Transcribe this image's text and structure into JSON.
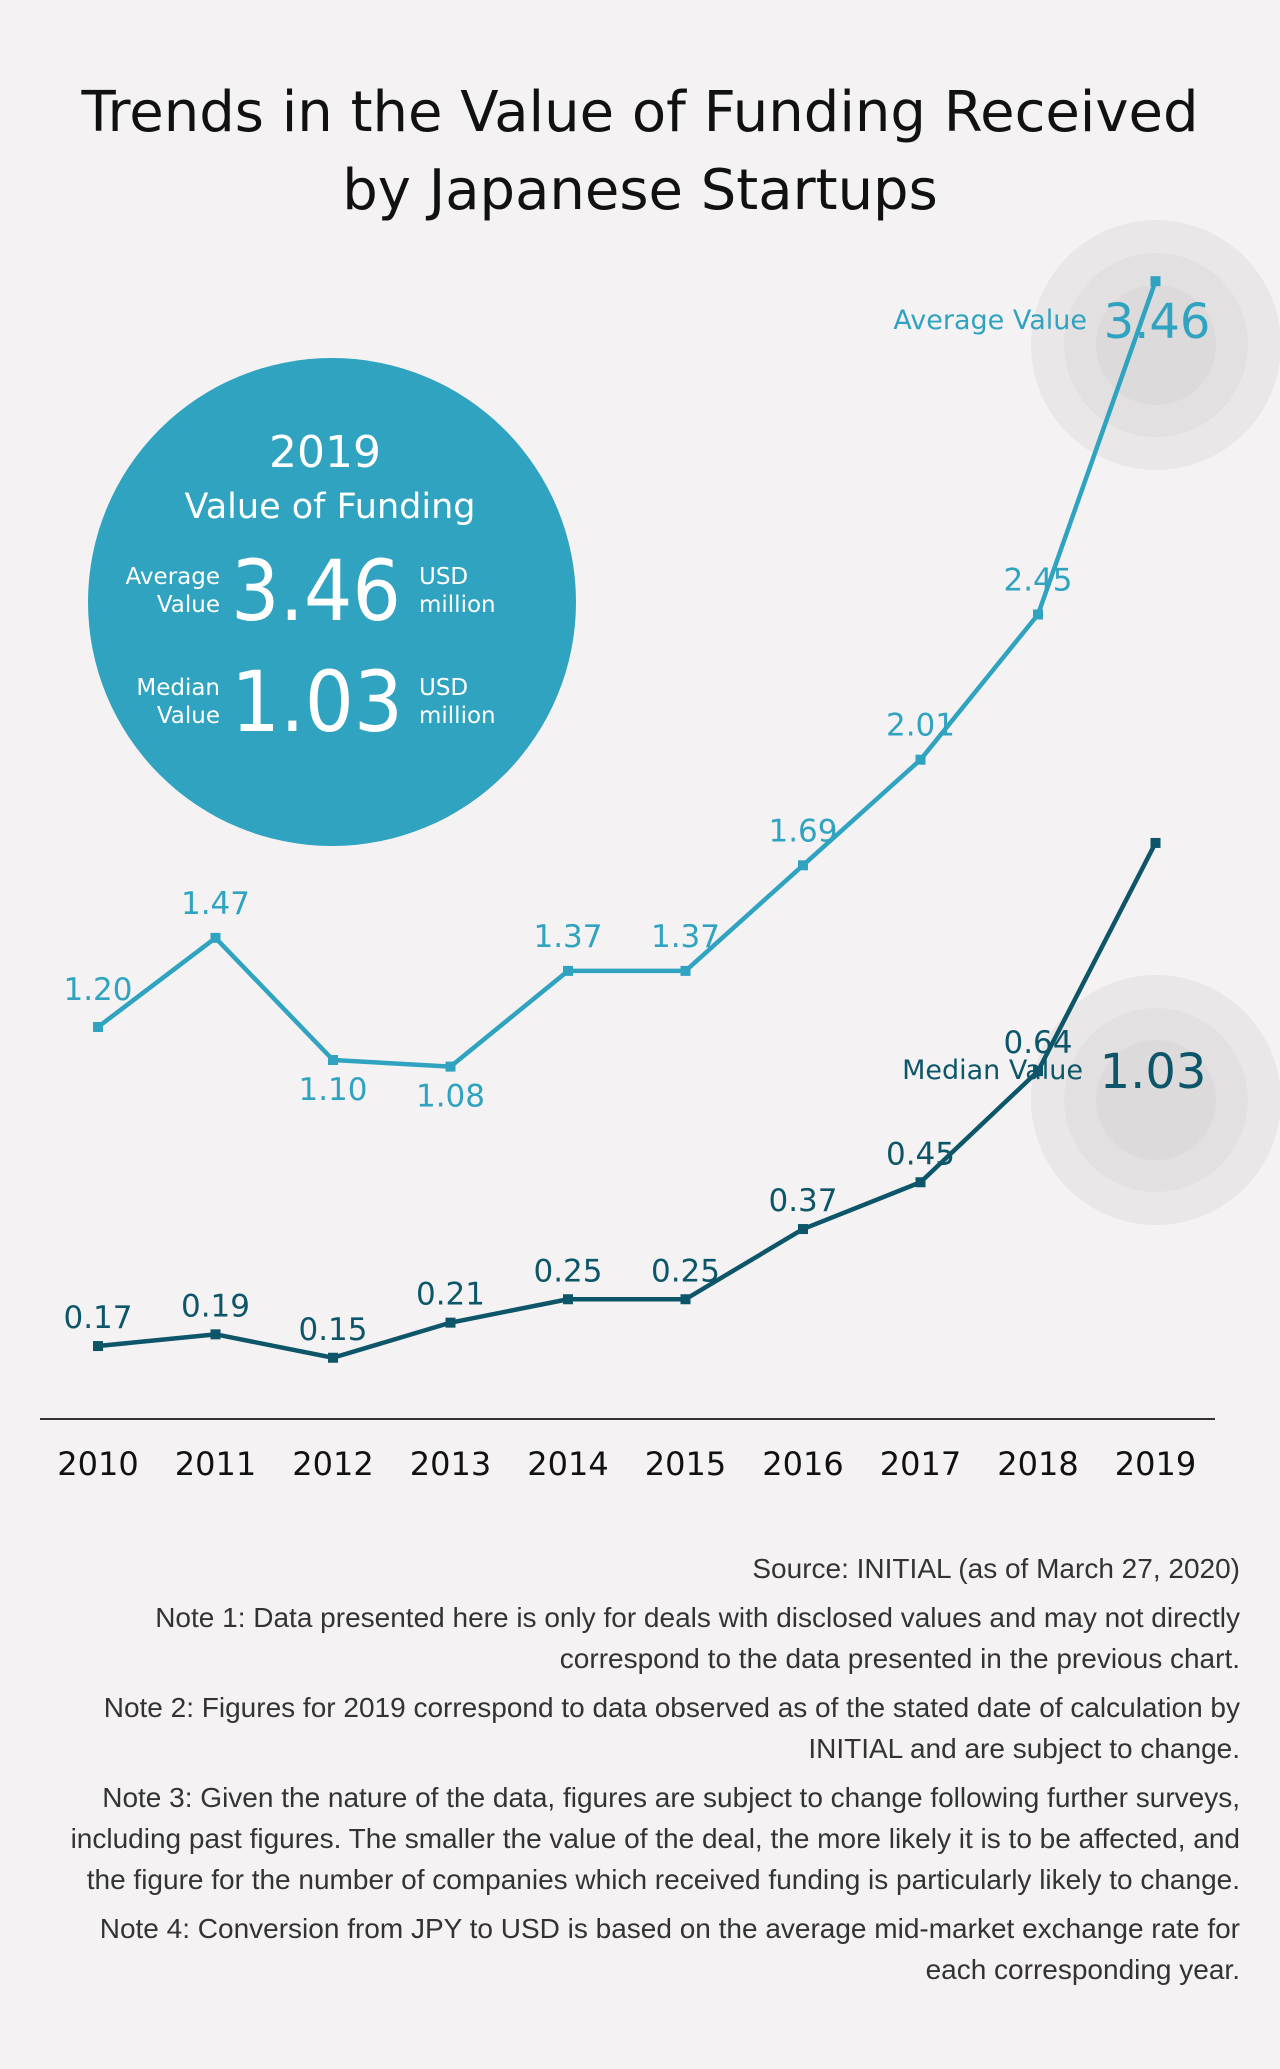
{
  "title_line1": "Trends in the Value of Funding Received",
  "title_line2": "by Japanese Startups",
  "summary": {
    "year": "2019",
    "heading": "Value of Funding",
    "average_label_1": "Average",
    "average_label_2": "Value",
    "average_value": "3.46",
    "median_label_1": "Median",
    "median_label_2": "Value",
    "median_value": "1.03",
    "unit_1": "USD",
    "unit_2": "million"
  },
  "colors": {
    "average": "#2fa3c0",
    "median": "#0d5669",
    "axis": "#333333",
    "circle": "#2fa3c0"
  },
  "chart_data": {
    "type": "line",
    "title": "Trends in the Value of Funding Received by Japanese Startups",
    "unit": "USD million",
    "categories": [
      "2010",
      "2011",
      "2012",
      "2013",
      "2014",
      "2015",
      "2016",
      "2017",
      "2018",
      "2019"
    ],
    "series": [
      {
        "name": "Average Value",
        "values": [
          1.2,
          1.47,
          1.1,
          1.08,
          1.37,
          1.37,
          1.69,
          2.01,
          2.45,
          3.46
        ],
        "labels": [
          "1.20",
          "1.47",
          "1.10",
          "1.08",
          "1.37",
          "1.37",
          "1.69",
          "2.01",
          "2.45",
          "3.46"
        ],
        "end_label": "Average Value"
      },
      {
        "name": "Median Value",
        "values": [
          0.17,
          0.19,
          0.15,
          0.21,
          0.25,
          0.25,
          0.37,
          0.45,
          0.64,
          1.03
        ],
        "labels": [
          "0.17",
          "0.19",
          "0.15",
          "0.21",
          "0.25",
          "0.25",
          "0.37",
          "0.45",
          "0.64",
          "1.03"
        ],
        "end_label": "Median Value"
      }
    ]
  },
  "notes": {
    "source": "Source: INITIAL (as of March 27, 2020)",
    "note1": "Note 1: Data presented here is only for deals with disclosed values and may not directly correspond to the data presented in the previous chart.",
    "note2": "Note 2: Figures for 2019 correspond to data observed as of the stated date of calculation by INITIAL and are subject to change.",
    "note3": "Note 3: Given the nature of the data, figures are subject to change following further surveys, including past figures. The smaller the value of the deal, the more likely it is to be affected, and the figure for the number of companies which received funding is particularly likely to change.",
    "note4": "Note 4: Conversion from JPY to USD is based on the average mid-market exchange rate for each corresponding year."
  }
}
